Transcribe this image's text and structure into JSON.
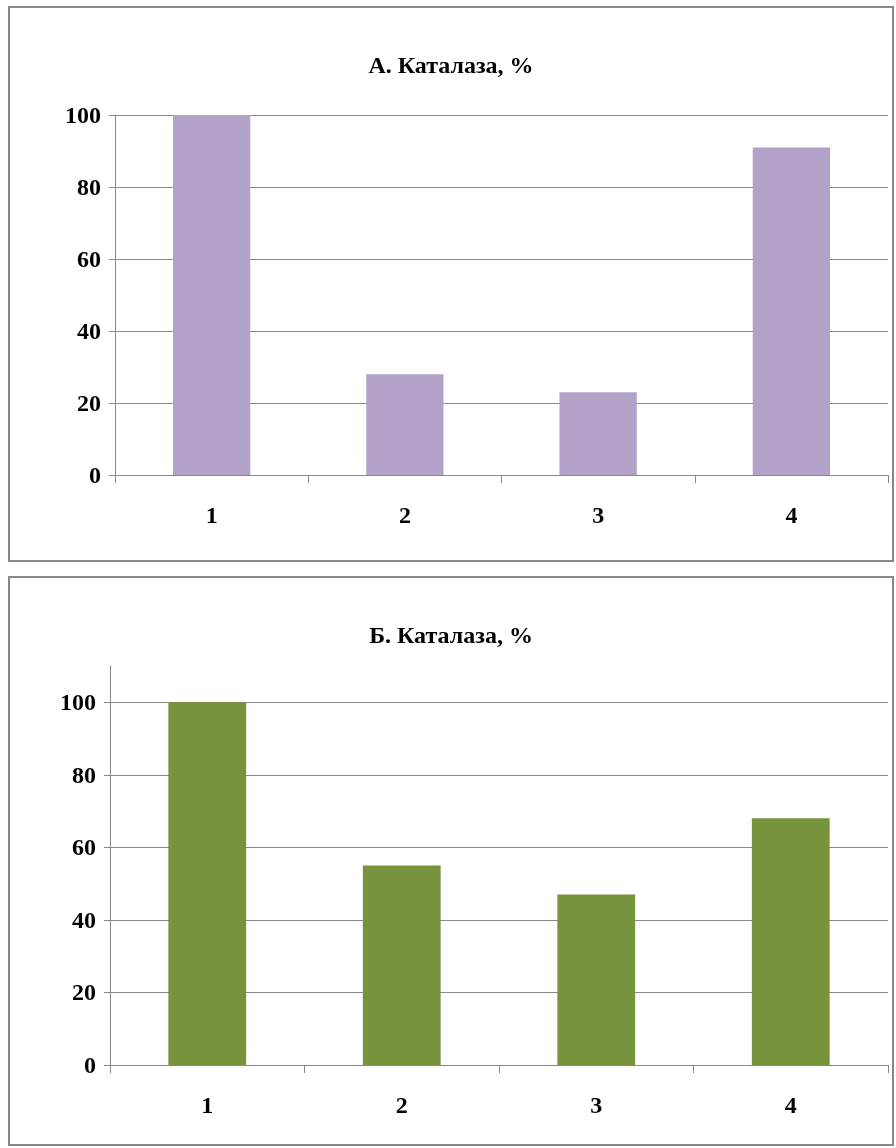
{
  "chart_data": [
    {
      "type": "bar",
      "title": "А. Каталаза, %",
      "categories": [
        "1",
        "2",
        "3",
        "4"
      ],
      "values": [
        100,
        28,
        23,
        91
      ],
      "color": "#b3a2c7",
      "ylim": [
        0,
        100
      ],
      "yticks": [
        0,
        20,
        40,
        60,
        80,
        100
      ],
      "grid": "y"
    },
    {
      "type": "bar",
      "title": "Б. Каталаза, %",
      "categories": [
        "1",
        "2",
        "3",
        "4"
      ],
      "values": [
        100,
        55,
        47,
        68
      ],
      "color": "#77933c",
      "ylim": [
        0,
        110
      ],
      "yticks": [
        0,
        20,
        40,
        60,
        80,
        100
      ],
      "grid": "y"
    }
  ]
}
